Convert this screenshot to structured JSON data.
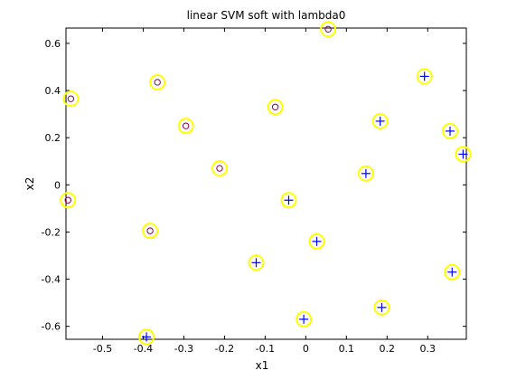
{
  "chart_data": {
    "type": "scatter",
    "title": "linear SVM soft with lambda0",
    "xlabel": "x1",
    "ylabel": "x2",
    "xlim": [
      -0.59,
      0.395
    ],
    "ylim": [
      -0.655,
      0.665
    ],
    "xticks": [
      -0.5,
      -0.4,
      -0.3,
      -0.2,
      -0.1,
      0,
      0.1,
      0.2,
      0.3
    ],
    "xtick_labels": [
      "-0.5",
      "-0.4",
      "-0.3",
      "-0.2",
      "-0.1",
      "0",
      "0.1",
      "0.2",
      "0.3"
    ],
    "yticks": [
      -0.6,
      -0.4,
      -0.2,
      0,
      0.2,
      0.4,
      0.6
    ],
    "ytick_labels": [
      "-0.6",
      "-0.4",
      "-0.2",
      "0",
      "0.2",
      "0.4",
      "0.6"
    ],
    "grid": false,
    "legend": "none",
    "series": [
      {
        "marker": "circle",
        "color": "#8b0045",
        "points": [
          [
            0.055,
            0.66
          ],
          [
            -0.365,
            0.435
          ],
          [
            -0.578,
            0.365
          ],
          [
            -0.075,
            0.33
          ],
          [
            -0.295,
            0.25
          ],
          [
            -0.212,
            0.07
          ],
          [
            -0.585,
            -0.065
          ],
          [
            -0.383,
            -0.195
          ]
        ]
      },
      {
        "marker": "plus",
        "color": "#0000ff",
        "points": [
          [
            0.292,
            0.46
          ],
          [
            0.183,
            0.27
          ],
          [
            0.355,
            0.228
          ],
          [
            0.387,
            0.13
          ],
          [
            0.148,
            0.048
          ],
          [
            -0.042,
            -0.065
          ],
          [
            0.027,
            -0.24
          ],
          [
            -0.122,
            -0.33
          ],
          [
            0.36,
            -0.37
          ],
          [
            0.187,
            -0.52
          ],
          [
            -0.005,
            -0.57
          ],
          [
            -0.392,
            -0.645
          ]
        ]
      }
    ],
    "support_vector_ring_color": "#ffff00"
  }
}
